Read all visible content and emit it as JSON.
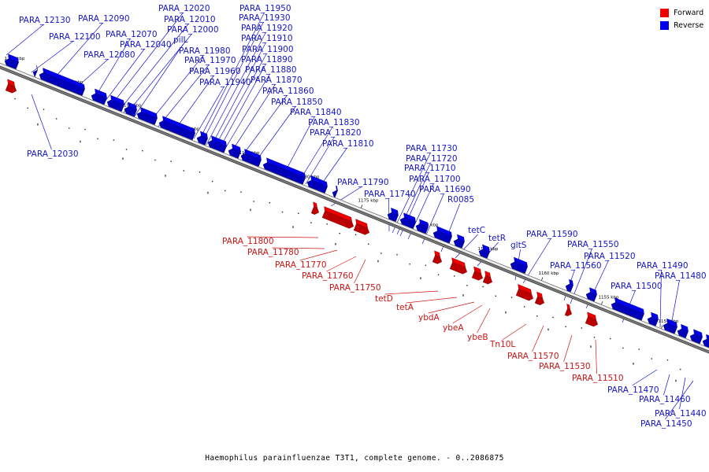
{
  "caption": "Haemophilus parainfluenzae T3T1, complete genome. - 0..2086875",
  "legend": {
    "forward": {
      "label": "Forward",
      "color": "#ee0000"
    },
    "reverse": {
      "label": "Reverse",
      "color": "#0000ee"
    }
  },
  "scale_ticks": [
    "1205 kbp",
    "1200 kbp",
    "1195 kbp",
    "1190 kbp",
    "1185 kbp",
    "1180 kbp",
    "1175 kbp",
    "1170 kbp",
    "1165 kbp",
    "1160 kbp",
    "1155 kbp",
    "1150 kbp"
  ],
  "reverse_genes": [
    "PARA_12130",
    "PARA_12090",
    "PARA_12100",
    "PARA_12070",
    "PARA_12080",
    "PARA_12040",
    "PARA_12030",
    "PARA_12020",
    "PARA_12010",
    "PARA_12000",
    "pilL",
    "PARA_11980",
    "PARA_11970",
    "PARA_11960",
    "PARA_11940",
    "PARA_11950",
    "PARA_11930",
    "PARA_11920",
    "PARA_11910",
    "PARA_11900",
    "PARA_11890",
    "PARA_11880",
    "PARA_11870",
    "PARA_11860",
    "PARA_11850",
    "PARA_11840",
    "PARA_11830",
    "PARA_11820",
    "PARA_11810",
    "PARA_11790",
    "PARA_11740",
    "PARA_11730",
    "PARA_11720",
    "PARA_11710",
    "PARA_11700",
    "PARA_11690",
    "R0085",
    "tetC",
    "tetR",
    "gltS",
    "PARA_11590",
    "PARA_11560",
    "PARA_11550",
    "PARA_11520",
    "PARA_11500",
    "PARA_11490",
    "PARA_11480",
    "PARA_11470",
    "PARA_11460",
    "PARA_11440",
    "PARA_11450"
  ],
  "forward_genes": [
    "PARA_11800",
    "PARA_11780",
    "PARA_11770",
    "PARA_11760",
    "PARA_11750",
    "tetD",
    "tetA",
    "ybdA",
    "ybeA",
    "ybeB",
    "Tn10L",
    "PARA_11570",
    "PARA_11530",
    "PARA_11510"
  ]
}
